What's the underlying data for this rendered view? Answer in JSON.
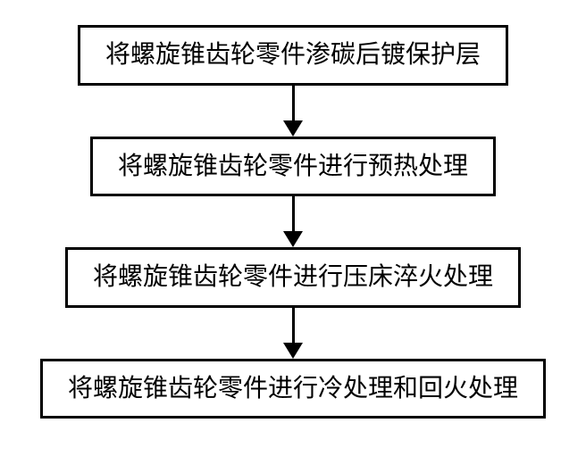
{
  "flowchart": {
    "type": "flowchart",
    "direction": "vertical",
    "background_color": "#ffffff",
    "border_color": "#000000",
    "border_width": 3,
    "text_color": "#000000",
    "font_size_pt": 21,
    "font_family": "SimSun",
    "box_padding_v": 14,
    "box_padding_h": 28,
    "arrow_line_length": 40,
    "arrow_line_width": 3,
    "arrow_head_width": 22,
    "arrow_head_height": 18,
    "steps": [
      {
        "label": "将螺旋锥齿轮零件渗碳后镀保护层"
      },
      {
        "label": "将螺旋锥齿轮零件进行预热处理"
      },
      {
        "label": "将螺旋锥齿轮零件进行压床淬火处理"
      },
      {
        "label": "将螺旋锥齿轮零件进行冷处理和回火处理"
      }
    ]
  }
}
